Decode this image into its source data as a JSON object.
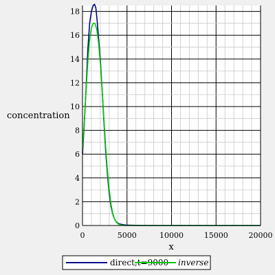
{
  "chart_data": {
    "type": "line",
    "title": "",
    "xlabel": "x",
    "ylabel": "concentration",
    "xlim": [
      0,
      20000
    ],
    "ylim": [
      0,
      18.5
    ],
    "x_ticks": [
      0,
      5000,
      10000,
      15000,
      20000
    ],
    "x_tick_labels": [
      "0",
      "5000",
      "10000",
      "15000",
      "20000"
    ],
    "y_ticks": [
      0,
      2,
      4,
      6,
      8,
      10,
      12,
      14,
      16,
      18
    ],
    "y_tick_labels": [
      "0",
      "2",
      "4",
      "6",
      "8",
      "10",
      "12",
      "14",
      "16",
      "18"
    ],
    "grid": true,
    "legend_position": "bottom",
    "series": [
      {
        "name": "direct,t=9000",
        "color": "#00008b",
        "italic": false,
        "x": [
          0,
          200,
          400,
          600,
          800,
          1000,
          1200,
          1350,
          1500,
          1650,
          1800,
          2000,
          2200,
          2400,
          2600,
          2800,
          3000,
          3200,
          3400,
          3600,
          3800,
          4000,
          4200,
          4400,
          4600,
          4800,
          5000,
          6000,
          8000,
          10000,
          15000,
          20000
        ],
        "y": [
          6.0,
          8.5,
          11.5,
          14.8,
          17.0,
          18.0,
          18.5,
          18.6,
          18.3,
          17.2,
          15.8,
          14.0,
          11.5,
          8.8,
          6.3,
          4.3,
          2.7,
          1.6,
          0.95,
          0.55,
          0.3,
          0.18,
          0.12,
          0.09,
          0.06,
          0.04,
          0.03,
          0.01,
          0.0,
          0.0,
          0.0,
          0.0
        ]
      },
      {
        "name": "inverse",
        "color": "#00c800",
        "italic": true,
        "x": [
          0,
          200,
          400,
          600,
          800,
          1000,
          1200,
          1400,
          1600,
          1800,
          2000,
          2200,
          2400,
          2600,
          2800,
          3000,
          3200,
          3400,
          3600,
          3800,
          4000,
          4200,
          4400,
          4600,
          4800,
          5000,
          6000,
          8000,
          10000,
          15000,
          20000
        ],
        "y": [
          6.3,
          8.7,
          11.3,
          13.8,
          15.6,
          16.6,
          17.0,
          17.0,
          16.5,
          15.4,
          13.7,
          11.5,
          9.0,
          6.6,
          4.6,
          3.0,
          1.8,
          1.0,
          0.55,
          0.28,
          0.14,
          0.07,
          0.03,
          0.01,
          0.0,
          0.0,
          0.0,
          0.0,
          0.0,
          0.0,
          0.0
        ]
      }
    ]
  }
}
